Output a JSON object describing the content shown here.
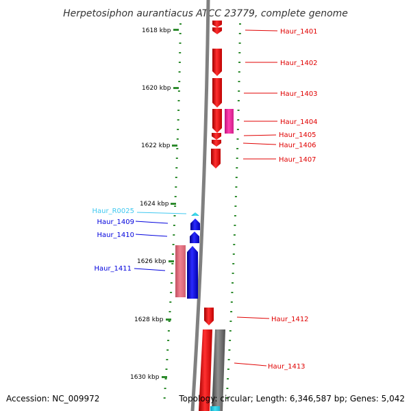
{
  "title": "Herpetosiphon aurantiacus ATCC 23779, complete genome",
  "footer": {
    "accession": "Accession: NC_009972",
    "summary": "Topology: circular; Length: 6,346,587 bp; Genes: 5,042"
  },
  "ticks": [
    "1618 kbp",
    "1620 kbp",
    "1622 kbp",
    "1624 kbp",
    "1626 kbp",
    "1628 kbp",
    "1630 kbp"
  ],
  "genes": [
    {
      "id": "Haur_1401",
      "strand": "forward",
      "color": "#ff0000"
    },
    {
      "id": "Haur_1402",
      "strand": "forward",
      "color": "#ff0000"
    },
    {
      "id": "Haur_1403",
      "strand": "forward",
      "color": "#ff0000"
    },
    {
      "id": "Haur_1404",
      "strand": "forward",
      "color": "#ff1493"
    },
    {
      "id": "Haur_1405",
      "strand": "forward",
      "color": "#ff0000"
    },
    {
      "id": "Haur_1406",
      "strand": "forward",
      "color": "#ff0000"
    },
    {
      "id": "Haur_1407",
      "strand": "forward",
      "color": "#ff0000"
    },
    {
      "id": "Haur_R0025",
      "strand": "reverse",
      "color": "#3ec8f0"
    },
    {
      "id": "Haur_1409",
      "strand": "reverse",
      "color": "#0000dd"
    },
    {
      "id": "Haur_1410",
      "strand": "reverse",
      "color": "#0000dd"
    },
    {
      "id": "Haur_1411",
      "strand": "reverse",
      "color": "#0000dd"
    },
    {
      "id": "Haur_1412",
      "strand": "forward",
      "color": "#ff0000"
    },
    {
      "id": "Haur_1413",
      "strand": "forward",
      "color": "#ff0000"
    }
  ],
  "colors": {
    "backbone": "#808080",
    "dots": "#2e8b2e",
    "forward_gene": "#ff0000",
    "reverse_gene": "#0000dd",
    "rna_gene": "#3ec8f0",
    "pseudo_gene": "#ff1493"
  }
}
